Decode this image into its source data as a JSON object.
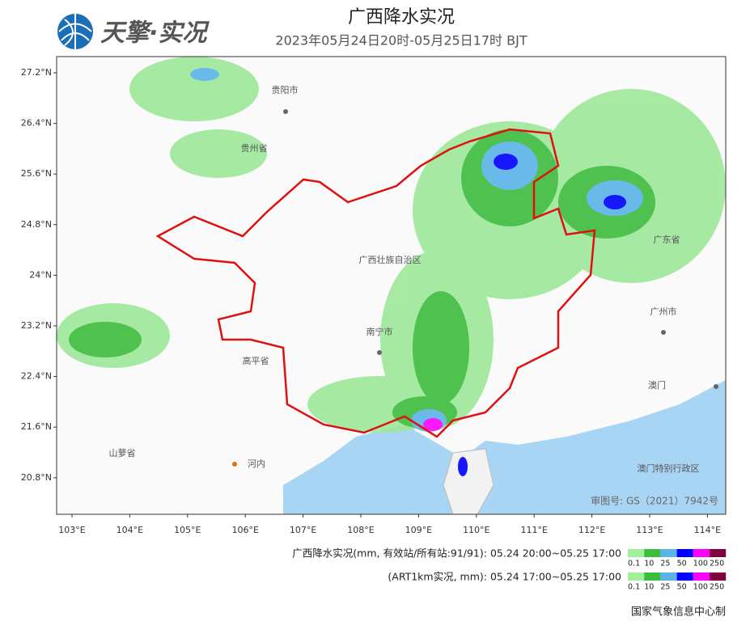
{
  "header": {
    "logo": "天擎·实况",
    "title": "广西降水实况",
    "subtitle": "2023年05月24日20时-05月25日17时 BJT"
  },
  "map": {
    "lat_ticks": [
      "27.2°N",
      "26.4°N",
      "25.6°N",
      "24.8°N",
      "24°N",
      "23.2°N",
      "22.4°N",
      "21.6°N",
      "20.8°N"
    ],
    "lon_ticks": [
      "103°E",
      "104°E",
      "105°E",
      "106°E",
      "107°E",
      "108°E",
      "109°E",
      "110°E",
      "111°E",
      "112°E",
      "113°E",
      "114°E"
    ],
    "labels": [
      "贵阳市",
      "贵州省",
      "广西壮族自治区",
      "南宁市",
      "高平省",
      "河内",
      "山萝省",
      "广东省",
      "广州市",
      "澳门",
      "澳门特别行政区"
    ],
    "approval": "审图号: GS（2021）7942号"
  },
  "legend": {
    "rows": [
      "广西降水实况(mm, 有效站/所有站:91/91): 05.24 20:00~05.25 17:00",
      "(ART1km实况, mm): 05.24 17:00~05.25 17:00"
    ],
    "thresholds": [
      0.1,
      10,
      25,
      50,
      100,
      250
    ],
    "colors": [
      "#a0f09a",
      "#3cbb3c",
      "#5ab4e8",
      "#0000fe",
      "#fe00fe",
      "#800040"
    ]
  },
  "footer": "国家气象信息中心制"
}
